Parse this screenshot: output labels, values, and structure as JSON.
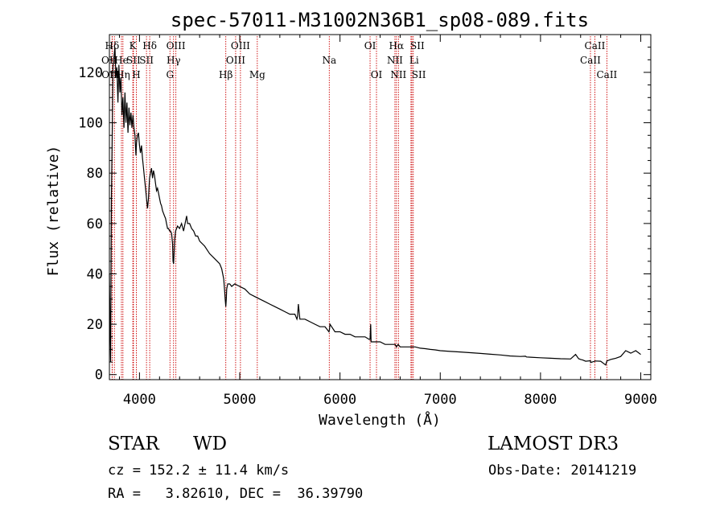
{
  "chart_data": {
    "type": "line",
    "title": "spec-57011-M31002N36B1_sp08-089.fits",
    "xlabel": "Wavelength (Å)",
    "ylabel": "Flux (relative)",
    "xlim": [
      3700,
      9100
    ],
    "ylim": [
      -2,
      135
    ],
    "xticks": [
      4000,
      5000,
      6000,
      7000,
      8000,
      9000
    ],
    "yticks": [
      0,
      20,
      40,
      60,
      80,
      100,
      120
    ],
    "series": [
      {
        "name": "spectrum",
        "x": [
          3700,
          3705,
          3712,
          3720,
          3728,
          3735,
          3745,
          3755,
          3765,
          3775,
          3785,
          3795,
          3805,
          3815,
          3825,
          3835,
          3845,
          3855,
          3865,
          3875,
          3885,
          3895,
          3905,
          3915,
          3925,
          3935,
          3945,
          3955,
          3965,
          3970,
          3980,
          3990,
          4000,
          4010,
          4020,
          4030,
          4040,
          4050,
          4060,
          4070,
          4080,
          4090,
          4095,
          4100,
          4110,
          4120,
          4130,
          4140,
          4150,
          4160,
          4170,
          4180,
          4190,
          4200,
          4210,
          4220,
          4230,
          4240,
          4250,
          4260,
          4270,
          4280,
          4290,
          4300,
          4310,
          4320,
          4330,
          4335,
          4340,
          4345,
          4350,
          4360,
          4370,
          4380,
          4400,
          4420,
          4440,
          4460,
          4470,
          4480,
          4500,
          4520,
          4540,
          4560,
          4580,
          4600,
          4650,
          4700,
          4750,
          4800,
          4820,
          4840,
          4850,
          4855,
          4861,
          4866,
          4870,
          4880,
          4890,
          4900,
          4920,
          4950,
          5000,
          5050,
          5100,
          5150,
          5200,
          5250,
          5300,
          5350,
          5400,
          5450,
          5500,
          5550,
          5570,
          5577,
          5585,
          5600,
          5650,
          5700,
          5750,
          5800,
          5850,
          5890,
          5895,
          5900,
          5950,
          6000,
          6050,
          6100,
          6150,
          6200,
          6250,
          6290,
          6300,
          6306,
          6310,
          6320,
          6350,
          6400,
          6450,
          6500,
          6550,
          6563,
          6580,
          6600,
          6650,
          6700,
          6750,
          6800,
          6850,
          6900,
          6950,
          7000,
          7100,
          7200,
          7300,
          7400,
          7500,
          7600,
          7700,
          7800,
          7850,
          7860,
          7900,
          8000,
          8100,
          8200,
          8300,
          8350,
          8380,
          8400,
          8420,
          8450,
          8498,
          8500,
          8542,
          8550,
          8600,
          8650,
          8662,
          8700,
          8750,
          8800,
          8850,
          8900,
          8950,
          9000
        ],
        "values": [
          40,
          24,
          5,
          70,
          95,
          122,
          126,
          130,
          118,
          122,
          108,
          123,
          112,
          118,
          103,
          110,
          98,
          112,
          100,
          108,
          96,
          106,
          99,
          104,
          98,
          103,
          98,
          95,
          87,
          92,
          95,
          96,
          91,
          88,
          91,
          86,
          82,
          78,
          74,
          70,
          66,
          70,
          74,
          78,
          80,
          82,
          78,
          81,
          79,
          76,
          73,
          74,
          72,
          70,
          68,
          67,
          65,
          64,
          63,
          62,
          60,
          58,
          58,
          57,
          57,
          56,
          52,
          45,
          44,
          48,
          53,
          57,
          58,
          59,
          58,
          60,
          57,
          61,
          63,
          60,
          60,
          58,
          57,
          55,
          55,
          53,
          51,
          48,
          46,
          44,
          42,
          38,
          33,
          30,
          27,
          30,
          34,
          36,
          36,
          36,
          35,
          36,
          35,
          34,
          32,
          31,
          30,
          29,
          28,
          27,
          26,
          25,
          24,
          24,
          22,
          23,
          28,
          22,
          22,
          21,
          20,
          19,
          19,
          17,
          18,
          20,
          17,
          17,
          16,
          16,
          15,
          15,
          15,
          14,
          14,
          20,
          13,
          13,
          13,
          13,
          12,
          12,
          12,
          11,
          12,
          11,
          11,
          11,
          11,
          10.5,
          10.3,
          10,
          9.8,
          9.5,
          9.2,
          9,
          8.7,
          8.4,
          8.1,
          7.8,
          7.4,
          7.2,
          7.3,
          7,
          6.9,
          6.7,
          6.5,
          6.3,
          6.2,
          8,
          6.3,
          6,
          5.8,
          5.3,
          5.5,
          4.8,
          5.3,
          5.4,
          5.3,
          3.8,
          5.4,
          6,
          6.5,
          7.2,
          9.5,
          8.5,
          9.5,
          8
        ]
      }
    ],
    "line_markers": [
      {
        "label": "Hδ",
        "wavelength": 3750,
        "row": 1,
        "offset": -1
      },
      {
        "label": "OII",
        "wavelength": 3727,
        "row": 2,
        "offset": -1
      },
      {
        "label": "OII",
        "wavelength": 3729,
        "row": 3,
        "offset": -1
      },
      {
        "label": "He",
        "wavelength": 3820,
        "row": 2,
        "offset": 0
      },
      {
        "label": "Hη",
        "wavelength": 3835,
        "row": 3,
        "offset": 0
      },
      {
        "label": "K",
        "wavelength": 3934,
        "row": 1,
        "offset": 0
      },
      {
        "label": "SII",
        "wavelength": 3940,
        "row": 2,
        "offset": 0
      },
      {
        "label": "H",
        "wavelength": 3969,
        "row": 3,
        "offset": 0
      },
      {
        "label": "Hδ",
        "wavelength": 4102,
        "row": 1,
        "offset": 0
      },
      {
        "label": "SII",
        "wavelength": 4070,
        "row": 2,
        "offset": 0
      },
      {
        "label": "OIII",
        "wavelength": 4363,
        "row": 1,
        "offset": 0
      },
      {
        "label": "Hγ",
        "wavelength": 4340,
        "row": 2,
        "offset": 0
      },
      {
        "label": "G",
        "wavelength": 4304,
        "row": 3,
        "offset": 0
      },
      {
        "label": "OIII",
        "wavelength": 5007,
        "row": 1,
        "offset": 0
      },
      {
        "label": "OIII",
        "wavelength": 4959,
        "row": 2,
        "offset": 0
      },
      {
        "label": "Hβ",
        "wavelength": 4861,
        "row": 3,
        "offset": 0
      },
      {
        "label": "Mg",
        "wavelength": 5175,
        "row": 3,
        "offset": 0
      },
      {
        "label": "Na",
        "wavelength": 5893,
        "row": 2,
        "offset": 0
      },
      {
        "label": "OI",
        "wavelength": 6300,
        "row": 1,
        "offset": 0
      },
      {
        "label": "OI",
        "wavelength": 6364,
        "row": 3,
        "offset": 0
      },
      {
        "label": "Hα",
        "wavelength": 6563,
        "row": 1,
        "offset": 0
      },
      {
        "label": "SII",
        "wavelength": 6717,
        "row": 1,
        "offset": 1
      },
      {
        "label": "NII",
        "wavelength": 6548,
        "row": 2,
        "offset": 0
      },
      {
        "label": "Li",
        "wavelength": 6708,
        "row": 2,
        "offset": 1
      },
      {
        "label": "NII",
        "wavelength": 6583,
        "row": 3,
        "offset": 0
      },
      {
        "label": "SII",
        "wavelength": 6731,
        "row": 3,
        "offset": 1
      },
      {
        "label": "CaII",
        "wavelength": 8542,
        "row": 1,
        "offset": 0
      },
      {
        "label": "CaII",
        "wavelength": 8498,
        "row": 2,
        "offset": 0
      },
      {
        "label": "CaII",
        "wavelength": 8662,
        "row": 3,
        "offset": 0
      }
    ],
    "colors": {
      "spectrum": "#000000",
      "marker_line": "#cc0000",
      "axes": "#000000"
    }
  },
  "info": {
    "object_class": "STAR",
    "subclass": "WD",
    "survey": "LAMOST DR3",
    "cz": "cz = 152.2 ± 11.4 km/s",
    "obs_date": "Obs-Date: 20141219",
    "coords": "RA =   3.82610, DEC =  36.39790"
  }
}
